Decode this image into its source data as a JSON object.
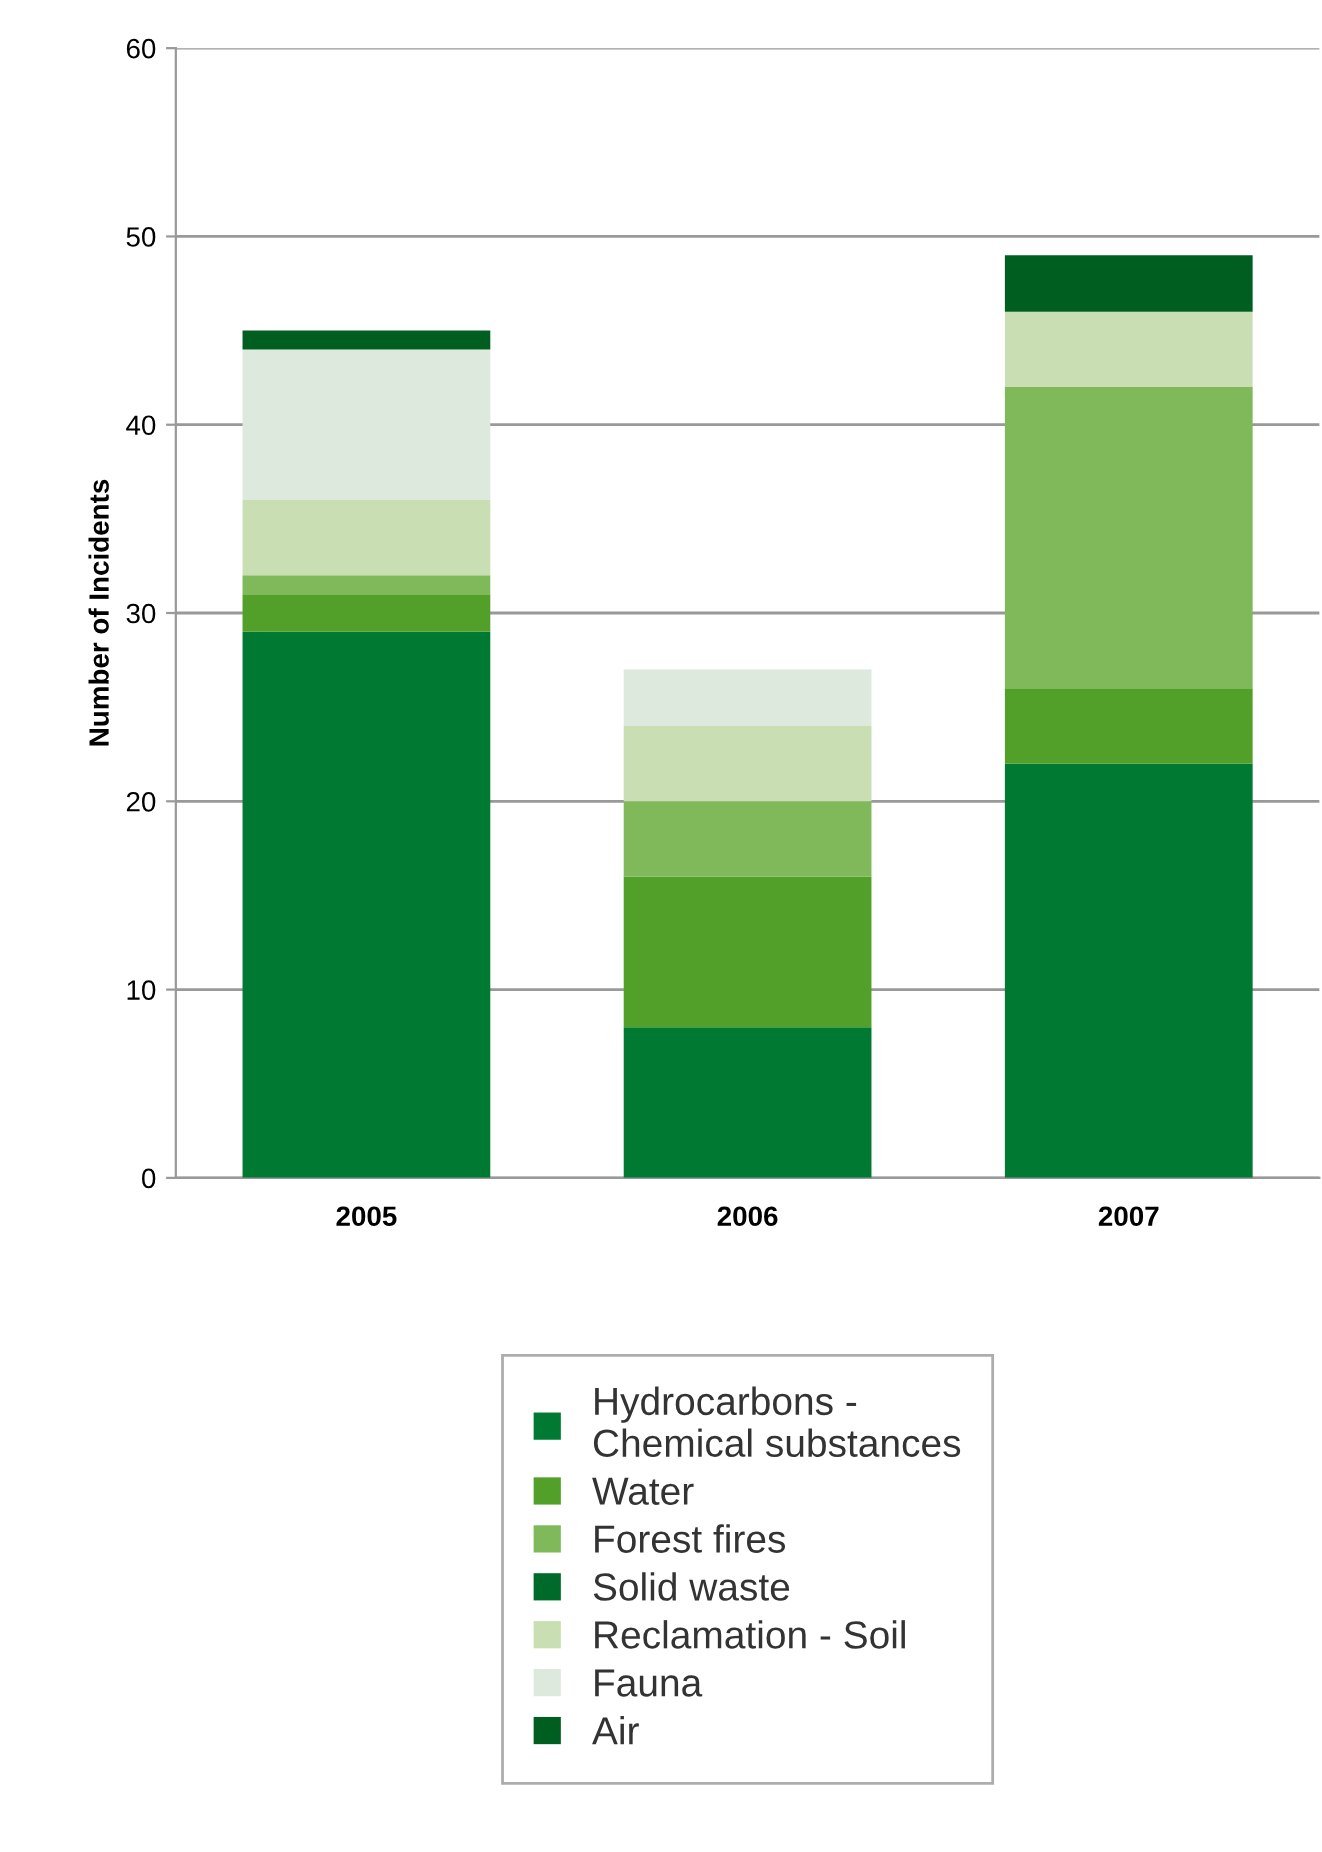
{
  "chart_data": {
    "type": "bar",
    "stacked": true,
    "ylabel": "Number of Incidents",
    "categories": [
      "2005",
      "2006",
      "2007"
    ],
    "series": [
      {
        "name": "Hydrocarbons -\nChemical substances",
        "color": "#007a33",
        "values": [
          29,
          8,
          22
        ]
      },
      {
        "name": "Water",
        "color": "#52a02a",
        "values": [
          2,
          8,
          4
        ]
      },
      {
        "name": "Forest fires",
        "color": "#80b95a",
        "values": [
          1,
          4,
          16
        ]
      },
      {
        "name": "Solid waste",
        "color": "#006a2a",
        "values": [
          0,
          0,
          0
        ]
      },
      {
        "name": "Reclamation - Soil",
        "color": "#c9dfb3",
        "values": [
          4,
          4,
          4
        ]
      },
      {
        "name": "Fauna",
        "color": "#dde9dc",
        "values": [
          8,
          3,
          0
        ]
      },
      {
        "name": "Air",
        "color": "#005e20",
        "values": [
          1,
          0,
          3
        ]
      }
    ],
    "ylim": [
      0,
      60
    ],
    "yticks": [
      0,
      10,
      20,
      30,
      40,
      50,
      60
    ],
    "grid": "y",
    "legend": "bottom"
  }
}
